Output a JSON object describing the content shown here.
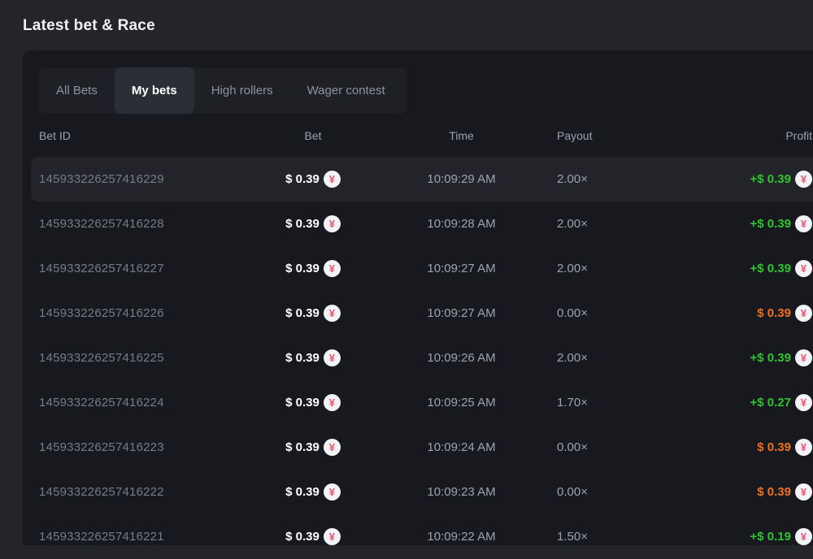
{
  "page": {
    "title": "Latest bet & Race"
  },
  "tabs": [
    {
      "label": "All Bets",
      "active": false
    },
    {
      "label": "My bets",
      "active": true
    },
    {
      "label": "High rollers",
      "active": false
    },
    {
      "label": "Wager contest",
      "active": false
    }
  ],
  "currency": {
    "icon": "yen-coin-icon",
    "symbol": "¥"
  },
  "colors": {
    "win": "#2ec52e",
    "loss": "#ef7120",
    "accent_coin": "#e8546e"
  },
  "table": {
    "columns": [
      "Bet ID",
      "Bet",
      "Time",
      "Payout",
      "Profit"
    ],
    "rows": [
      {
        "id": "145933226257416229",
        "bet": "$ 0.39",
        "time": "10:09:29 AM",
        "payout": "2.00×",
        "profit": "+$ 0.39",
        "profit_state": "win",
        "highlight": true
      },
      {
        "id": "145933226257416228",
        "bet": "$ 0.39",
        "time": "10:09:28 AM",
        "payout": "2.00×",
        "profit": "+$ 0.39",
        "profit_state": "win",
        "highlight": false
      },
      {
        "id": "145933226257416227",
        "bet": "$ 0.39",
        "time": "10:09:27 AM",
        "payout": "2.00×",
        "profit": "+$ 0.39",
        "profit_state": "win",
        "highlight": false
      },
      {
        "id": "145933226257416226",
        "bet": "$ 0.39",
        "time": "10:09:27 AM",
        "payout": "0.00×",
        "profit": "$ 0.39",
        "profit_state": "loss",
        "highlight": false
      },
      {
        "id": "145933226257416225",
        "bet": "$ 0.39",
        "time": "10:09:26 AM",
        "payout": "2.00×",
        "profit": "+$ 0.39",
        "profit_state": "win",
        "highlight": false
      },
      {
        "id": "145933226257416224",
        "bet": "$ 0.39",
        "time": "10:09:25 AM",
        "payout": "1.70×",
        "profit": "+$ 0.27",
        "profit_state": "win",
        "highlight": false
      },
      {
        "id": "145933226257416223",
        "bet": "$ 0.39",
        "time": "10:09:24 AM",
        "payout": "0.00×",
        "profit": "$ 0.39",
        "profit_state": "loss",
        "highlight": false
      },
      {
        "id": "145933226257416222",
        "bet": "$ 0.39",
        "time": "10:09:23 AM",
        "payout": "0.00×",
        "profit": "$ 0.39",
        "profit_state": "loss",
        "highlight": false
      },
      {
        "id": "145933226257416221",
        "bet": "$ 0.39",
        "time": "10:09:22 AM",
        "payout": "1.50×",
        "profit": "+$ 0.19",
        "profit_state": "win",
        "highlight": false
      }
    ]
  }
}
